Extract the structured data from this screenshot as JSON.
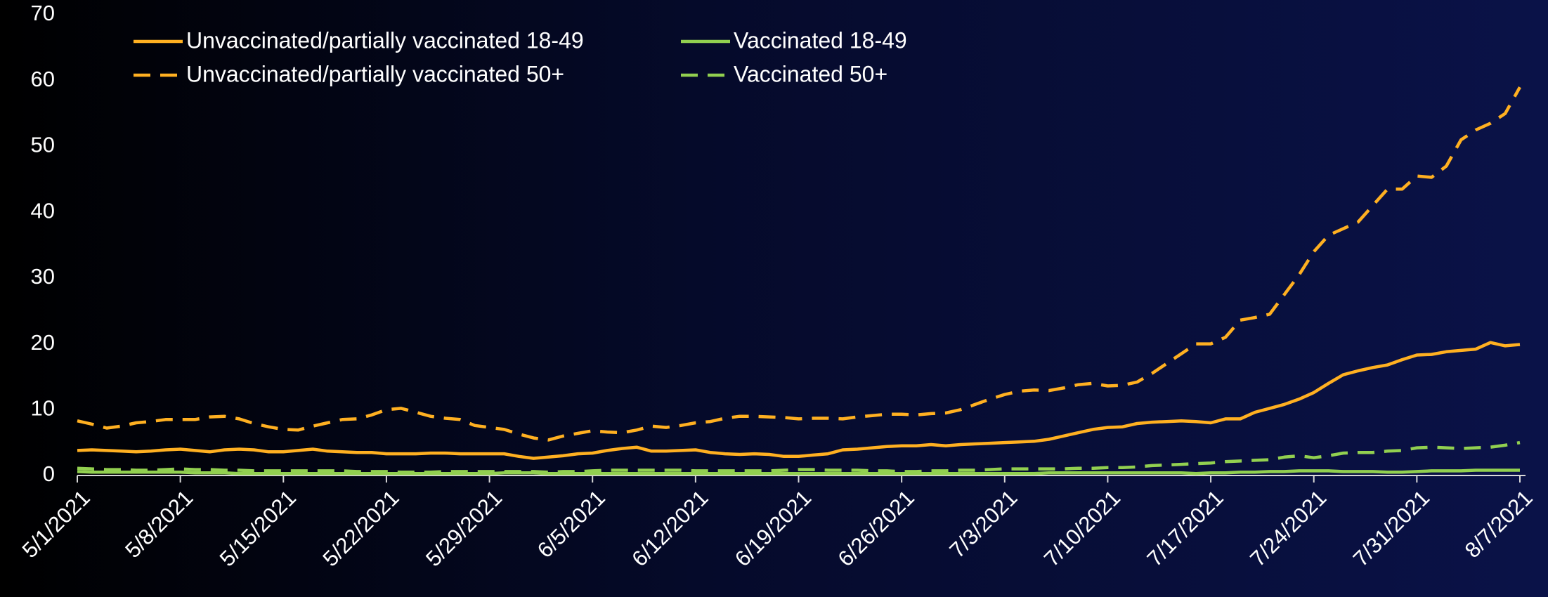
{
  "chart_data": {
    "type": "line",
    "categories": [
      "5/1/2021",
      null,
      null,
      null,
      null,
      null,
      null,
      "5/8/2021",
      null,
      null,
      null,
      null,
      null,
      null,
      "5/15/2021",
      null,
      null,
      null,
      null,
      null,
      null,
      "5/22/2021",
      null,
      null,
      null,
      null,
      null,
      null,
      "5/29/2021",
      null,
      null,
      null,
      null,
      null,
      null,
      "6/5/2021",
      null,
      null,
      null,
      null,
      null,
      null,
      "6/12/2021",
      null,
      null,
      null,
      null,
      null,
      null,
      "6/19/2021",
      null,
      null,
      null,
      null,
      null,
      null,
      "6/26/2021",
      null,
      null,
      null,
      null,
      null,
      null,
      "7/3/2021",
      null,
      null,
      null,
      null,
      null,
      null,
      "7/10/2021",
      null,
      null,
      null,
      null,
      null,
      null,
      "7/17/2021",
      null,
      null,
      null,
      null,
      null,
      null,
      "7/24/2021",
      null,
      null,
      null,
      null,
      null,
      null,
      "7/31/2021",
      null,
      null,
      null,
      null,
      null,
      null,
      "8/7/2021"
    ],
    "series": [
      {
        "name": "Unvaccinated/partially vaccinated 18-49",
        "color": "#ffb021",
        "dashed": false,
        "values": [
          3.8,
          3.9,
          3.8,
          3.7,
          3.6,
          3.7,
          3.9,
          4.0,
          3.8,
          3.6,
          3.9,
          4.0,
          3.9,
          3.6,
          3.6,
          3.8,
          4.0,
          3.7,
          3.6,
          3.5,
          3.5,
          3.3,
          3.3,
          3.3,
          3.4,
          3.4,
          3.3,
          3.3,
          3.3,
          3.3,
          2.9,
          2.6,
          2.8,
          3.0,
          3.3,
          3.4,
          3.8,
          4.1,
          4.3,
          3.7,
          3.7,
          3.8,
          3.9,
          3.5,
          3.3,
          3.2,
          3.3,
          3.2,
          2.9,
          2.9,
          3.1,
          3.3,
          3.9,
          4.0,
          4.2,
          4.4,
          4.5,
          4.5,
          4.7,
          4.5,
          4.7,
          4.8,
          4.9,
          5.0,
          5.1,
          5.2,
          5.5,
          6.0,
          6.5,
          7.0,
          7.3,
          7.4,
          7.9,
          8.1,
          8.2,
          8.3,
          8.2,
          8.0,
          8.6,
          8.6,
          9.6,
          10.2,
          10.8,
          11.6,
          12.6,
          14.0,
          15.3,
          15.9,
          16.4,
          16.8,
          17.6,
          18.3,
          18.4,
          18.8,
          19.0,
          19.2,
          20.2,
          19.7,
          19.9
        ]
      },
      {
        "name": "Vaccinated 18-49",
        "color": "#92d050",
        "dashed": false,
        "values": [
          0.6,
          0.5,
          0.5,
          0.5,
          0.5,
          0.5,
          0.5,
          0.5,
          0.4,
          0.4,
          0.4,
          0.3,
          0.3,
          0.3,
          0.3,
          0.3,
          0.3,
          0.3,
          0.3,
          0.3,
          0.3,
          0.3,
          0.3,
          0.3,
          0.3,
          0.3,
          0.3,
          0.3,
          0.3,
          0.4,
          0.4,
          0.4,
          0.3,
          0.3,
          0.3,
          0.3,
          0.3,
          0.3,
          0.3,
          0.3,
          0.3,
          0.3,
          0.3,
          0.3,
          0.3,
          0.3,
          0.3,
          0.3,
          0.3,
          0.3,
          0.3,
          0.3,
          0.3,
          0.3,
          0.3,
          0.3,
          0.3,
          0.3,
          0.3,
          0.3,
          0.3,
          0.3,
          0.3,
          0.3,
          0.3,
          0.3,
          0.4,
          0.4,
          0.4,
          0.4,
          0.4,
          0.4,
          0.4,
          0.4,
          0.4,
          0.4,
          0.3,
          0.4,
          0.4,
          0.5,
          0.5,
          0.6,
          0.6,
          0.7,
          0.7,
          0.7,
          0.6,
          0.6,
          0.6,
          0.5,
          0.5,
          0.6,
          0.7,
          0.7,
          0.7,
          0.8,
          0.8,
          0.8,
          0.8
        ]
      },
      {
        "name": "Unvaccinated/partially vaccinated 50+",
        "color": "#ffb021",
        "dashed": true,
        "values": [
          8.3,
          7.8,
          7.2,
          7.5,
          8.0,
          8.2,
          8.5,
          8.5,
          8.5,
          8.9,
          9.0,
          8.6,
          7.9,
          7.4,
          7.0,
          6.9,
          7.5,
          8.0,
          8.5,
          8.6,
          9.2,
          10.0,
          10.2,
          9.6,
          9.0,
          8.7,
          8.5,
          7.6,
          7.3,
          7.0,
          6.3,
          5.7,
          5.4,
          6.0,
          6.4,
          6.8,
          6.6,
          6.5,
          6.9,
          7.5,
          7.3,
          7.6,
          8.0,
          8.2,
          8.7,
          9.0,
          9.0,
          8.9,
          8.8,
          8.6,
          8.7,
          8.7,
          8.6,
          8.9,
          9.1,
          9.3,
          9.3,
          9.2,
          9.4,
          9.5,
          10.0,
          10.8,
          11.6,
          12.3,
          12.8,
          13.0,
          12.9,
          13.3,
          13.8,
          14.0,
          13.6,
          13.7,
          14.2,
          15.5,
          17.0,
          18.5,
          20.0,
          20.0,
          21.0,
          23.6,
          24.0,
          24.5,
          27.5,
          30.5,
          34.0,
          36.5,
          37.5,
          38.5,
          41.0,
          43.5,
          43.5,
          45.5,
          45.3,
          47.0,
          51.0,
          52.5,
          53.5,
          55.0,
          59.0
        ]
      },
      {
        "name": "Vaccinated 50+",
        "color": "#92d050",
        "dashed": true,
        "values": [
          1.1,
          1.0,
          0.9,
          0.9,
          0.8,
          0.8,
          0.9,
          1.0,
          0.9,
          0.9,
          0.8,
          0.8,
          0.7,
          0.7,
          0.7,
          0.7,
          0.7,
          0.7,
          0.7,
          0.6,
          0.6,
          0.6,
          0.5,
          0.5,
          0.5,
          0.6,
          0.6,
          0.6,
          0.6,
          0.6,
          0.6,
          0.6,
          0.5,
          0.6,
          0.6,
          0.7,
          0.8,
          0.8,
          0.8,
          0.8,
          0.8,
          0.8,
          0.7,
          0.7,
          0.7,
          0.7,
          0.7,
          0.7,
          0.8,
          0.9,
          0.9,
          0.8,
          0.8,
          0.8,
          0.7,
          0.7,
          0.6,
          0.6,
          0.7,
          0.7,
          0.8,
          0.8,
          0.9,
          1.0,
          1.0,
          1.0,
          1.0,
          1.0,
          1.1,
          1.1,
          1.2,
          1.2,
          1.3,
          1.5,
          1.6,
          1.7,
          1.8,
          1.9,
          2.1,
          2.2,
          2.3,
          2.4,
          2.8,
          3.0,
          2.7,
          3.0,
          3.4,
          3.5,
          3.5,
          3.7,
          3.8,
          4.2,
          4.3,
          4.2,
          4.1,
          4.2,
          4.3,
          4.6,
          5.0
        ]
      }
    ],
    "ylim": [
      0,
      70
    ],
    "yticks": [
      0,
      10,
      20,
      30,
      40,
      50,
      60,
      70
    ],
    "grid": false,
    "legend": "top-left"
  }
}
